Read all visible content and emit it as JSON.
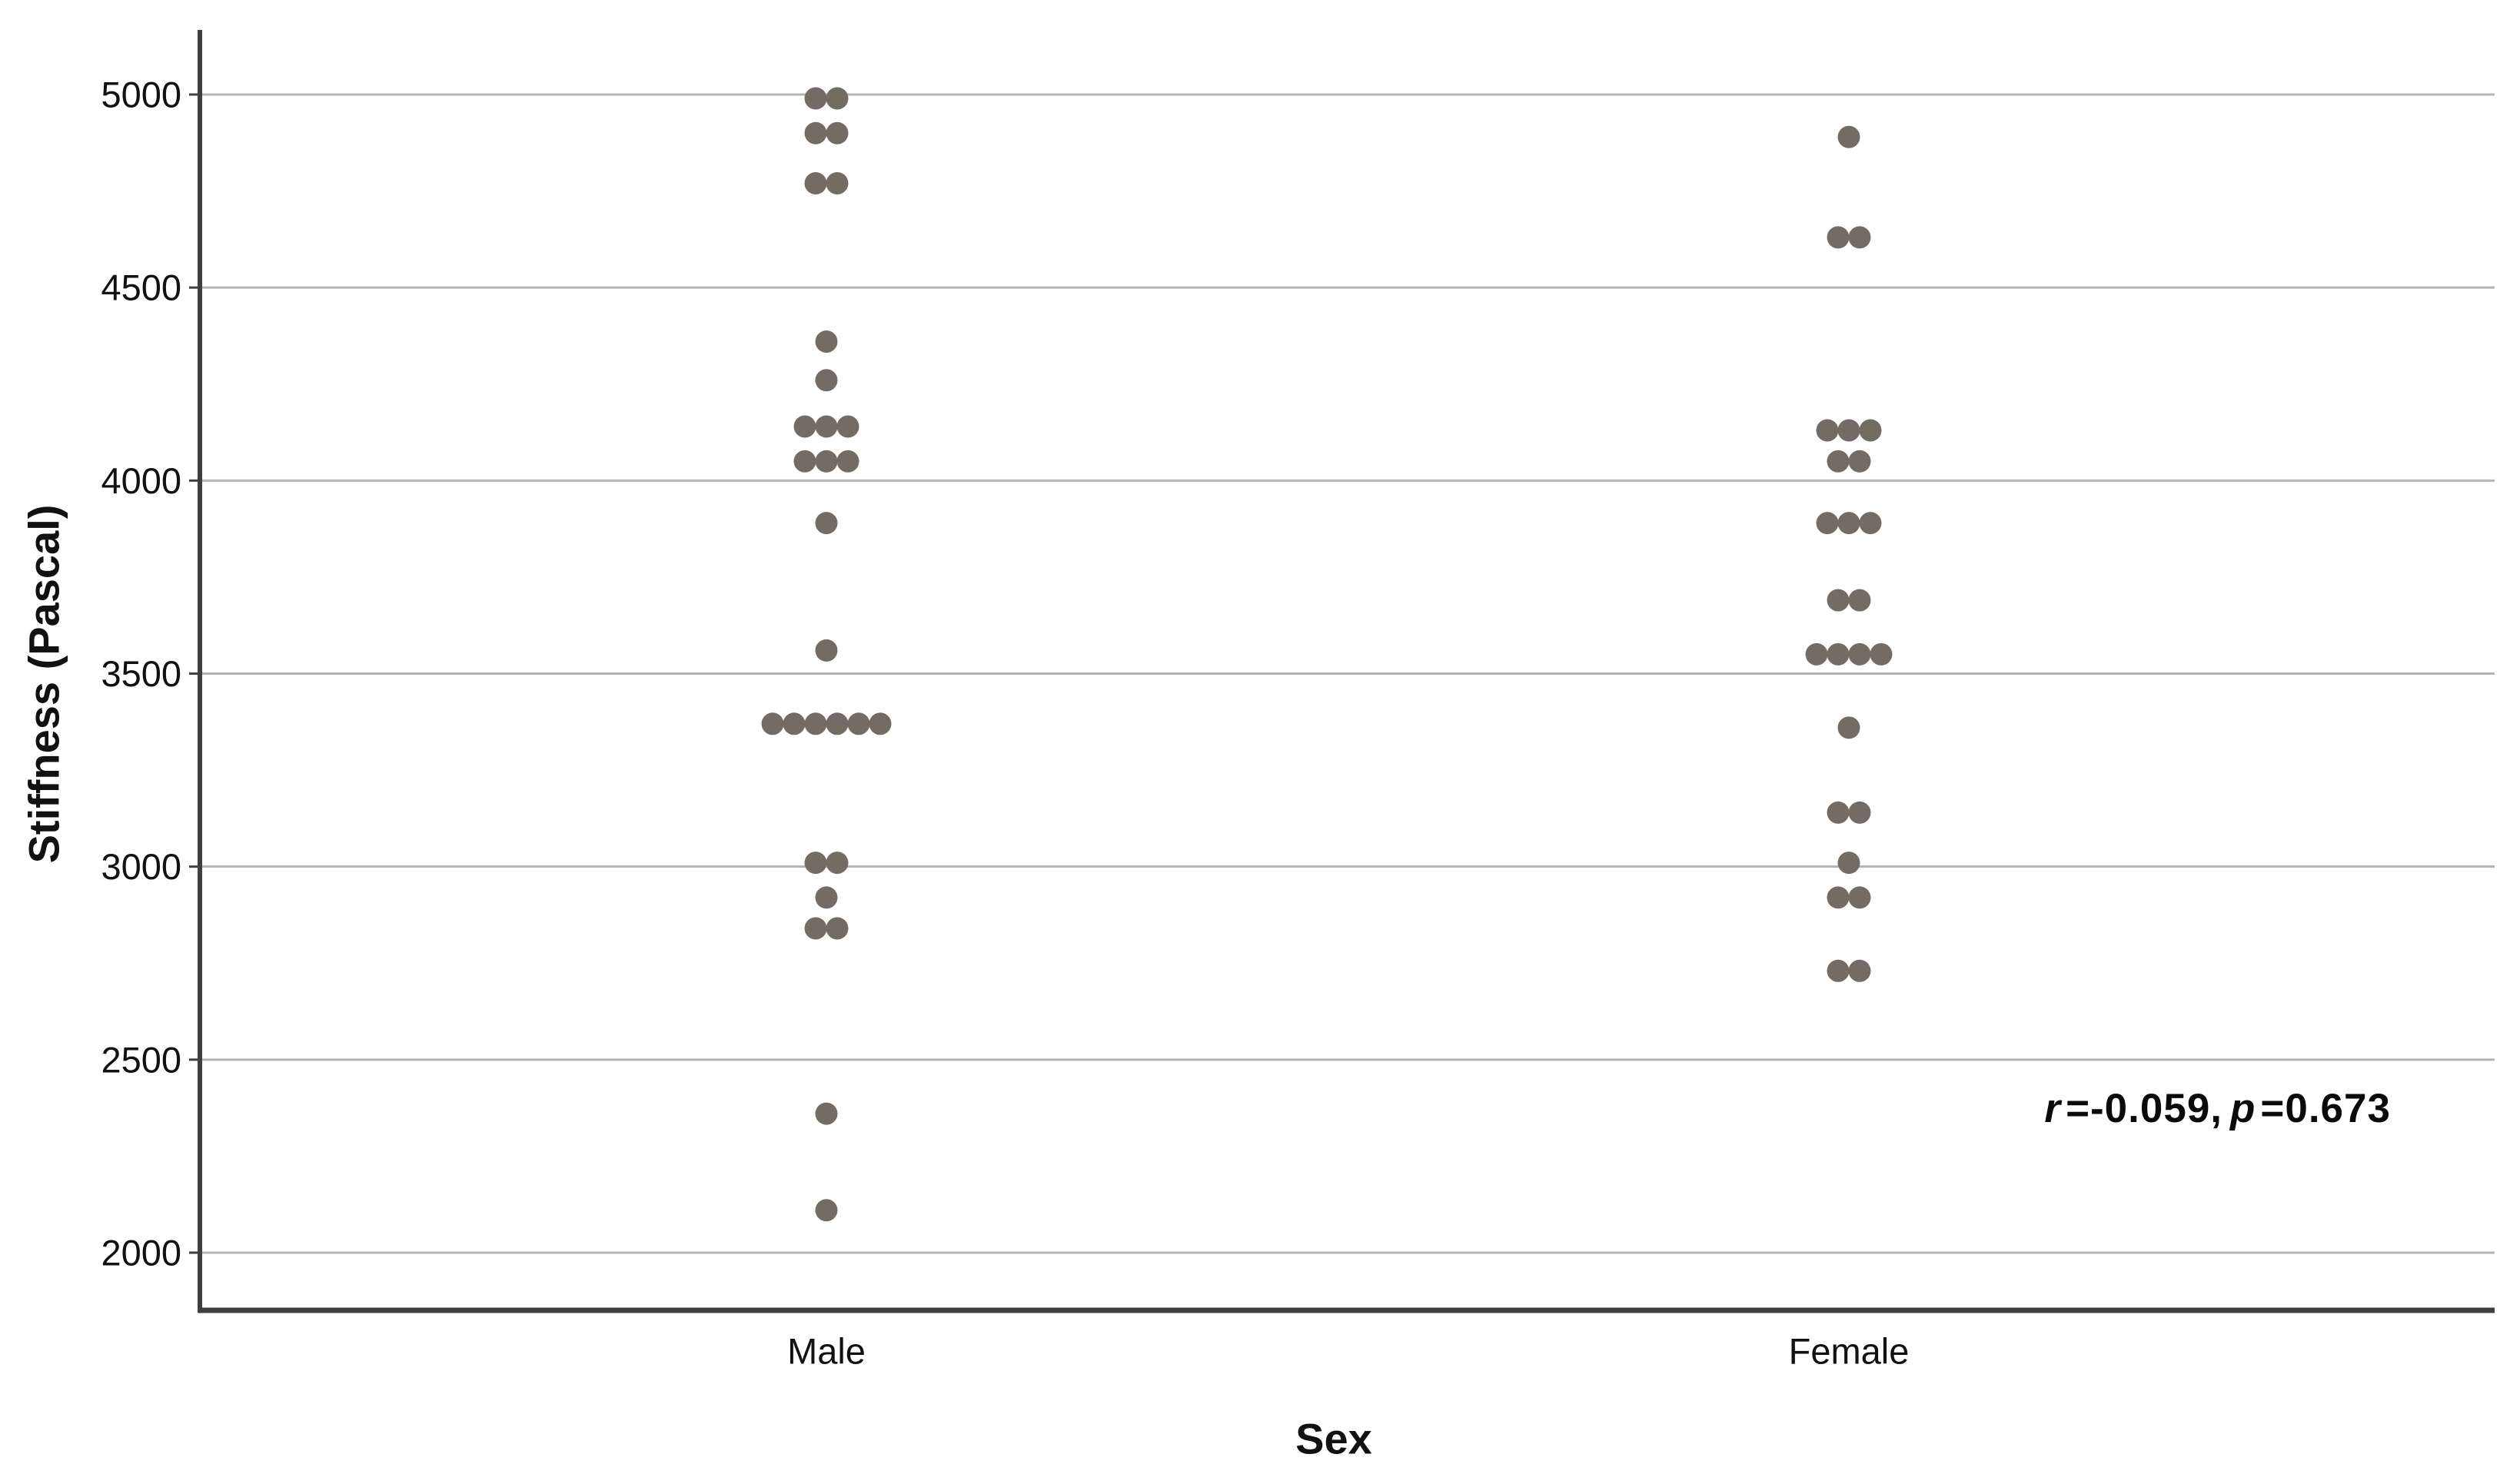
{
  "chart_data": {
    "type": "scatter",
    "subtype": "dot-strip-plot",
    "title": "",
    "xlabel": "Sex",
    "ylabel": "Stiffness (Pascal)",
    "categories": [
      "Male",
      "Female"
    ],
    "y_ticks": [
      5000,
      4500,
      4000,
      3500,
      3000,
      2500,
      2000
    ],
    "ylim": [
      1850,
      5170
    ],
    "grid": true,
    "legend": "none",
    "annotation": "r=-0.059, p=0.673",
    "dot_color": "#726c65",
    "grid_color": "#b4b4b4",
    "axis_color": "#3f3f3f",
    "series": [
      {
        "name": "Male",
        "points": [
          {
            "v": 4990,
            "n": 2
          },
          {
            "v": 4900,
            "n": 2
          },
          {
            "v": 4770,
            "n": 2
          },
          {
            "v": 4360,
            "n": 1
          },
          {
            "v": 4260,
            "n": 1
          },
          {
            "v": 4140,
            "n": 3
          },
          {
            "v": 4050,
            "n": 3
          },
          {
            "v": 3890,
            "n": 1
          },
          {
            "v": 3560,
            "n": 1
          },
          {
            "v": 3370,
            "n": 6
          },
          {
            "v": 3010,
            "n": 2
          },
          {
            "v": 2920,
            "n": 1
          },
          {
            "v": 2840,
            "n": 2
          },
          {
            "v": 2360,
            "n": 1
          },
          {
            "v": 2110,
            "n": 1
          }
        ]
      },
      {
        "name": "Female",
        "points": [
          {
            "v": 4890,
            "n": 1
          },
          {
            "v": 4630,
            "n": 2
          },
          {
            "v": 4130,
            "n": 3
          },
          {
            "v": 4050,
            "n": 2
          },
          {
            "v": 3890,
            "n": 3
          },
          {
            "v": 3690,
            "n": 2
          },
          {
            "v": 3550,
            "n": 4
          },
          {
            "v": 3360,
            "n": 1
          },
          {
            "v": 3140,
            "n": 2
          },
          {
            "v": 3010,
            "n": 1
          },
          {
            "v": 2920,
            "n": 2
          },
          {
            "v": 2730,
            "n": 2
          }
        ]
      }
    ]
  },
  "annotation": {
    "r_var": "r",
    "r_rest": "=-0.059,",
    "p_var": "p",
    "p_rest": "=0.673"
  }
}
